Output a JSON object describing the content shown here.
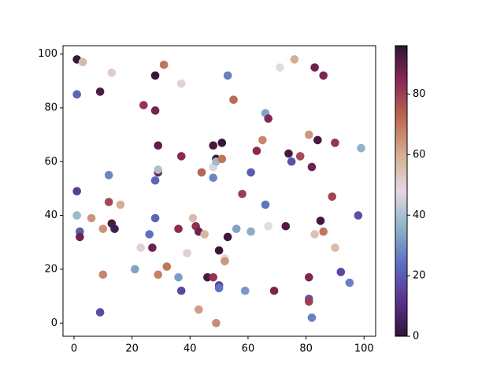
{
  "chart_data": {
    "type": "scatter",
    "xlim": [
      -3.8,
      104
    ],
    "ylim": [
      -4.9,
      103.1
    ],
    "xticks": [
      0,
      20,
      40,
      60,
      80,
      100
    ],
    "yticks": [
      0,
      20,
      40,
      60,
      80,
      100
    ],
    "series": [
      {
        "x": [
          1,
          3,
          1,
          9,
          13,
          24,
          28,
          31,
          37,
          28,
          29,
          53,
          55,
          71,
          76,
          83,
          86,
          66,
          67,
          65,
          63,
          74,
          75,
          78,
          81,
          84,
          90,
          99,
          82,
          12,
          1,
          12,
          16,
          1,
          6,
          2,
          13,
          14,
          10,
          2,
          29,
          29,
          28,
          37,
          28,
          26,
          23,
          27,
          21,
          32,
          29,
          10,
          9,
          36,
          36,
          37,
          39,
          41,
          42,
          43,
          45,
          44,
          48,
          48,
          48,
          49,
          49,
          51,
          51,
          58,
          61,
          56,
          61,
          66,
          67,
          73,
          53,
          52,
          52,
          46,
          48,
          50,
          50,
          50,
          43,
          49,
          59,
          69,
          81,
          81,
          81,
          82,
          83,
          85,
          86,
          89,
          90,
          92,
          95,
          98
        ],
        "values": [
          98,
          97,
          85,
          86,
          93,
          81,
          92,
          96,
          89,
          79,
          66,
          92,
          83,
          95,
          98,
          95,
          92,
          78,
          76,
          68,
          64,
          63,
          60,
          62,
          70,
          68,
          67,
          65,
          58,
          55,
          49,
          45,
          44,
          40,
          39,
          34,
          37,
          35,
          35,
          32,
          56,
          57,
          53,
          62,
          39,
          33,
          28,
          28,
          20,
          21,
          18,
          18,
          4,
          35,
          17,
          12,
          26,
          39,
          36,
          34,
          33,
          56,
          66,
          58,
          54,
          61,
          60,
          67,
          61,
          48,
          56,
          35,
          34,
          44,
          36,
          36,
          32,
          24,
          23,
          17,
          17,
          27,
          14,
          13,
          5,
          0,
          12,
          12,
          17,
          9,
          8,
          2,
          33,
          38,
          34,
          47,
          28,
          19,
          15,
          40
        ],
        "c": [
          95,
          57,
          22,
          92,
          52,
          82,
          95,
          70,
          50,
          87,
          90,
          27,
          72,
          48,
          60,
          88,
          86,
          33,
          85,
          67,
          84,
          93,
          18,
          78,
          64,
          93,
          82,
          36,
          88,
          28,
          14,
          78,
          60,
          38,
          64,
          20,
          93,
          4,
          65,
          88,
          88,
          40,
          22,
          84,
          22,
          24,
          50,
          88,
          33,
          70,
          68,
          67,
          17,
          84,
          32,
          16,
          50,
          56,
          83,
          88,
          58,
          73,
          93,
          47,
          28,
          95,
          38,
          95,
          70,
          80,
          20,
          33,
          35,
          25,
          48,
          92,
          94,
          48,
          64,
          93,
          82,
          95,
          15,
          25,
          63,
          66,
          31,
          86,
          86,
          18,
          80,
          27,
          55,
          94,
          70,
          79,
          56,
          16,
          27,
          18
        ]
      }
    ],
    "colorbar": {
      "lim": [
        0,
        96
      ],
      "ticks": [
        0,
        20,
        40,
        60,
        80
      ],
      "colors": [
        "#301437",
        "#5a3290",
        "#5c6fc0",
        "#8fb4c9",
        "#e2d9e2",
        "#d6ae91",
        "#bc6a52",
        "#8c2a55",
        "#301437"
      ]
    }
  }
}
